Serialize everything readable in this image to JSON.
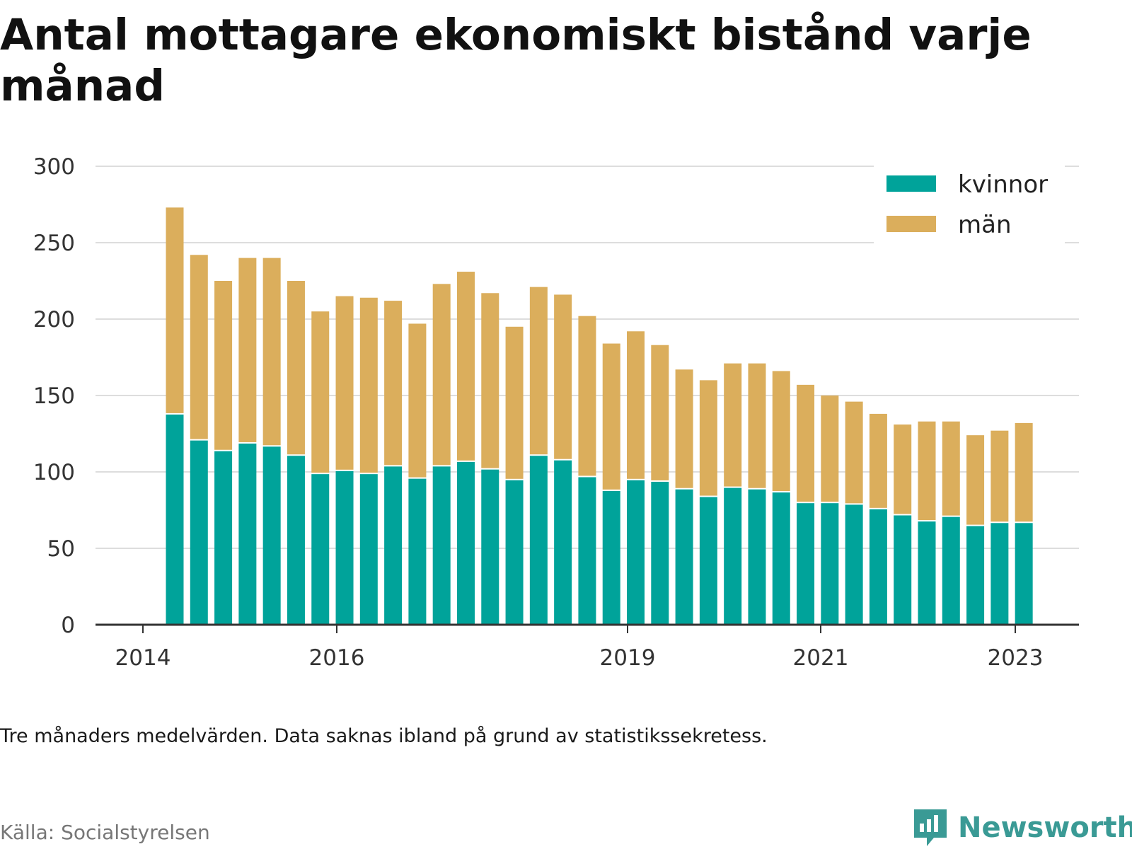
{
  "title": "Antal mottagare ekonomiskt bistånd varje månad",
  "note": "Tre månaders medelvärden. Data saknas ibland på grund av statistikssekretess.",
  "source": "Källa: Socialstyrelsen",
  "brand": {
    "name": "Newsworthy",
    "icon": "newsworthy-logo-icon",
    "color": "#3a9a95"
  },
  "colors": {
    "kvinnor": "#00a39a",
    "man": "#dbae5c",
    "grid": "#dddddd",
    "axis": "#333333"
  },
  "chart_data": {
    "type": "bar",
    "stacked": true,
    "ylim": [
      0,
      300
    ],
    "y_ticks": [
      0,
      50,
      100,
      150,
      200,
      250,
      300
    ],
    "x_ticks": [
      "2014",
      "2016",
      "2019",
      "2021",
      "2023"
    ],
    "legend": "top-right",
    "grid": true,
    "series": [
      {
        "name": "kvinnor",
        "values": [
          138,
          121,
          114,
          119,
          117,
          111,
          99,
          101,
          99,
          104,
          96,
          104,
          107,
          102,
          95,
          111,
          108,
          97,
          88,
          95,
          94,
          89,
          84,
          90,
          89,
          87,
          80,
          80,
          79,
          76,
          72,
          68,
          71,
          65,
          67,
          67
        ]
      },
      {
        "name": "män",
        "values": [
          135,
          121,
          111,
          121,
          123,
          114,
          106,
          114,
          115,
          108,
          101,
          119,
          124,
          115,
          100,
          110,
          108,
          105,
          96,
          97,
          89,
          78,
          76,
          81,
          82,
          79,
          77,
          70,
          67,
          62,
          59,
          65,
          62,
          59,
          60,
          65
        ]
      }
    ]
  }
}
